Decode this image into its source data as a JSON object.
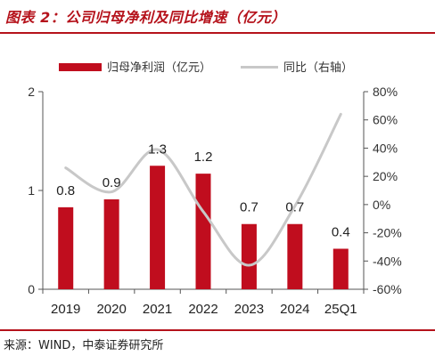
{
  "header": {
    "title": "图表 2：公司归母净利及同比增速（亿元）"
  },
  "footer": {
    "source": "来源：WIND，中泰证券研究所"
  },
  "colors": {
    "bar": "#c00d1e",
    "line": "#c8c8c8",
    "accent": "#b5121b"
  },
  "chart_data": {
    "type": "bar",
    "categories": [
      "2019",
      "2020",
      "2021",
      "2022",
      "2023",
      "2024",
      "25Q1"
    ],
    "series": [
      {
        "name": "归母净利润（亿元）",
        "type": "bar",
        "axis": "left",
        "values": [
          0.83,
          0.91,
          1.25,
          1.17,
          0.66,
          0.66,
          0.41
        ],
        "labels": [
          "0.8",
          "0.9",
          "1.3",
          "1.2",
          "0.7",
          "0.7",
          "0.4"
        ]
      },
      {
        "name": "同比（右轴）",
        "type": "line",
        "axis": "right",
        "values": [
          26,
          9,
          39,
          -5,
          -43,
          -1,
          64
        ]
      }
    ],
    "y_left": {
      "min": 0,
      "max": 2,
      "ticks": [
        "0",
        "1",
        "2"
      ]
    },
    "y_right": {
      "min": -60,
      "max": 80,
      "ticks": [
        "-60%",
        "-40%",
        "-20%",
        "0%",
        "20%",
        "40%",
        "60%",
        "80%"
      ]
    },
    "legend": "top",
    "grid": false
  }
}
